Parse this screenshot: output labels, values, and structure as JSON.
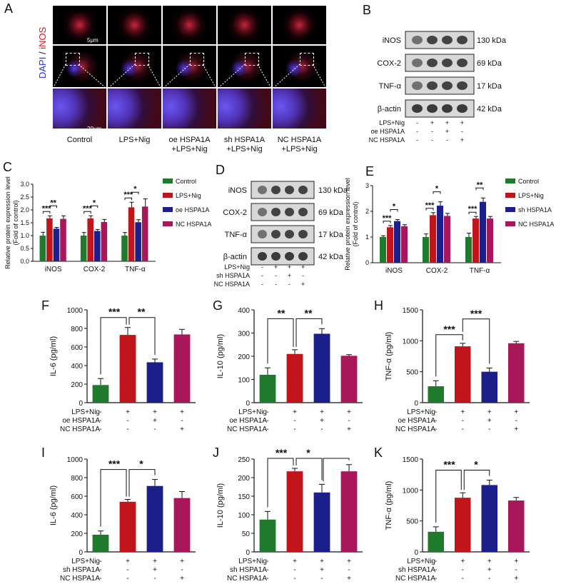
{
  "panel_letters": [
    "A",
    "B",
    "C",
    "D",
    "E",
    "F",
    "G",
    "H",
    "I",
    "J",
    "K"
  ],
  "micro": {
    "stain_dapi": "DAPI",
    "stain_sep": "/",
    "stain_inos": "iNOS",
    "scale_top": "5μm",
    "scale_bottom": "20μm",
    "columns": [
      "Control",
      "LPS+Nig",
      "oe HSPA1A\n+LPS+Nig",
      "sh HSPA1A\n+LPS+Nig",
      "NC HSPA1A\n+LPS+Nig"
    ]
  },
  "blot_b": {
    "proteins": [
      "iNOS",
      "COX-2",
      "TNF-α",
      "β-actin"
    ],
    "sizes": [
      "130 kDa",
      "69 kDa",
      "17 kDa",
      "42 kDa"
    ],
    "rows": [
      {
        "label": "LPS+Nig",
        "signs": [
          "-",
          "+",
          "+",
          "+"
        ]
      },
      {
        "label": "oe HSPA1A",
        "signs": [
          "-",
          "-",
          "+",
          "-"
        ]
      },
      {
        "label": "NC HSPA1A",
        "signs": [
          "-",
          "-",
          "-",
          "+"
        ]
      }
    ]
  },
  "blot_d": {
    "proteins": [
      "iNOS",
      "COX-2",
      "TNF-α",
      "β-actin"
    ],
    "sizes": [
      "130 kDa",
      "69 kDa",
      "17 kDa",
      "42 kDa"
    ],
    "rows": [
      {
        "label": "LPS+Nig",
        "signs": [
          "-",
          "+",
          "+",
          "+"
        ]
      },
      {
        "label": "sh HSPA1A",
        "signs": [
          "-",
          "-",
          "+",
          "-"
        ]
      },
      {
        "label": "NC HSPA1A",
        "signs": [
          "-",
          "-",
          "-",
          "+"
        ]
      }
    ]
  },
  "colors": {
    "control": "#1f7a2e",
    "lps": "#c0151b",
    "treat": "#1b1f8a",
    "nc": "#a8175a"
  },
  "chart_data": [
    {
      "id": "C",
      "type": "bar",
      "ylabel": "Relative protein expression level\n(Fold of control)",
      "ylim": [
        0,
        3.0
      ],
      "ticks": [
        "0.0",
        "0.5",
        "1.0",
        "1.5",
        "2.0",
        "2.5",
        "3.0"
      ],
      "categories": [
        "iNOS",
        "COX-2",
        "TNF-α"
      ],
      "series": [
        {
          "name": "Control",
          "values": [
            1.0,
            1.0,
            1.0
          ],
          "err": [
            0.13,
            0.12,
            0.12
          ]
        },
        {
          "name": "LPS+Nig",
          "values": [
            1.67,
            1.67,
            2.1
          ],
          "err": [
            0.1,
            0.1,
            0.2
          ]
        },
        {
          "name": "oe HSPA1A",
          "values": [
            1.27,
            1.18,
            1.52
          ],
          "err": [
            0.05,
            0.06,
            0.1
          ]
        },
        {
          "name": "NC HSPA1A",
          "values": [
            1.65,
            1.53,
            2.13
          ],
          "err": [
            0.12,
            0.1,
            0.3
          ]
        }
      ],
      "sig": [
        [
          "***",
          "**"
        ],
        [
          "***",
          "*"
        ],
        [
          "***",
          "*"
        ]
      ]
    },
    {
      "id": "E",
      "type": "bar",
      "ylabel": "Relative protein expression level\n(Fold of control)",
      "ylim": [
        0,
        3
      ],
      "ticks": [
        "0",
        "1",
        "2",
        "3"
      ],
      "categories": [
        "iNOS",
        "COX-2",
        "TNF-α"
      ],
      "series": [
        {
          "name": "Control",
          "values": [
            1.0,
            1.0,
            1.0
          ],
          "err": [
            0.05,
            0.12,
            0.15
          ]
        },
        {
          "name": "LPS+Nig",
          "values": [
            1.38,
            1.85,
            1.72
          ],
          "err": [
            0.07,
            0.1,
            0.08
          ]
        },
        {
          "name": "sh HSPA1A",
          "values": [
            1.62,
            2.22,
            2.37
          ],
          "err": [
            0.06,
            0.15,
            0.15
          ]
        },
        {
          "name": "NC HSPA1A",
          "values": [
            1.42,
            1.82,
            1.72
          ],
          "err": [
            0.06,
            0.1,
            0.08
          ]
        }
      ],
      "sig": [
        [
          "***",
          "*"
        ],
        [
          "***",
          "*"
        ],
        [
          "***",
          "**"
        ]
      ]
    },
    {
      "id": "F",
      "type": "bar",
      "ylabel": "IL-6 (pg/ml)",
      "ylim": [
        0,
        1000
      ],
      "ticks": [
        "0",
        "200",
        "400",
        "600",
        "800",
        "1000"
      ],
      "values": [
        190,
        730,
        435,
        735
      ],
      "err": [
        70,
        80,
        35,
        55
      ],
      "sig": [
        "***",
        "**"
      ],
      "bracket": "short",
      "rows": [
        {
          "label": "LPS+Nig",
          "signs": [
            "-",
            "+",
            "+",
            "+"
          ]
        },
        {
          "label": "oe HSPA1A",
          "signs": [
            "-",
            "-",
            "+",
            "-"
          ]
        },
        {
          "label": "NC HSPA1A",
          "signs": [
            "-",
            "-",
            "-",
            "+"
          ]
        }
      ]
    },
    {
      "id": "G",
      "type": "bar",
      "ylabel": "IL-10 (pg/ml)",
      "ylim": [
        0,
        400
      ],
      "ticks": [
        "0",
        "100",
        "200",
        "300",
        "400"
      ],
      "values": [
        120,
        210,
        297,
        202
      ],
      "err": [
        30,
        18,
        22,
        5
      ],
      "sig": [
        "**",
        "**"
      ],
      "bracket": "short",
      "rows": [
        {
          "label": "LPS+Nig",
          "signs": [
            "-",
            "+",
            "+",
            "+"
          ]
        },
        {
          "label": "oe HSPA1A",
          "signs": [
            "-",
            "-",
            "+",
            "-"
          ]
        },
        {
          "label": "NC HSPA1A",
          "signs": [
            "-",
            "-",
            "-",
            "+"
          ]
        }
      ]
    },
    {
      "id": "H",
      "type": "bar",
      "ylabel": "TNF-α (pg/ml)",
      "ylim": [
        0,
        1500
      ],
      "ticks": [
        "0",
        "500",
        "1000",
        "1500"
      ],
      "values": [
        265,
        910,
        500,
        960
      ],
      "err": [
        90,
        50,
        60,
        30
      ],
      "sig": [
        "***",
        "***"
      ],
      "bracket": "stacked",
      "rows": [
        {
          "label": "LPS+Nig",
          "signs": [
            "-",
            "+",
            "+",
            "+"
          ]
        },
        {
          "label": "oe HSPA1A",
          "signs": [
            "-",
            "-",
            "+",
            "-"
          ]
        },
        {
          "label": "NC HSPA1A",
          "signs": [
            "-",
            "-",
            "-",
            "+"
          ]
        }
      ]
    },
    {
      "id": "I",
      "type": "bar",
      "ylabel": "IL-6 (pg/ml)",
      "ylim": [
        0,
        1000
      ],
      "ticks": [
        "0",
        "200",
        "400",
        "600",
        "800",
        "1000"
      ],
      "values": [
        185,
        540,
        710,
        580
      ],
      "err": [
        40,
        25,
        70,
        70
      ],
      "sig": [
        "***",
        "*"
      ],
      "bracket": "short",
      "rows": [
        {
          "label": "LPS+Nig",
          "signs": [
            "-",
            "+",
            "+",
            "+"
          ]
        },
        {
          "label": "sh HSPA1A",
          "signs": [
            "-",
            "-",
            "+",
            "-"
          ]
        },
        {
          "label": "NC HSPA1A",
          "signs": [
            "-",
            "-",
            "-",
            "+"
          ]
        }
      ]
    },
    {
      "id": "J",
      "type": "bar",
      "ylabel": "IL-10 (pg/ml)",
      "ylim": [
        0,
        250
      ],
      "ticks": [
        "0",
        "50",
        "100",
        "150",
        "200",
        "250"
      ],
      "values": [
        87,
        217,
        160,
        217
      ],
      "err": [
        22,
        8,
        22,
        18
      ],
      "sig": [
        "***",
        "*"
      ],
      "bracket": "triple",
      "rows": [
        {
          "label": "LPS+Nig",
          "signs": [
            "-",
            "+",
            "+",
            "+"
          ]
        },
        {
          "label": "sh HSPA1A",
          "signs": [
            "-",
            "-",
            "+",
            "-"
          ]
        },
        {
          "label": "NC HSPA1A",
          "signs": [
            "-",
            "-",
            "-",
            "+"
          ]
        }
      ]
    },
    {
      "id": "K",
      "type": "bar",
      "ylabel": "TNF-α (pg/ml)",
      "ylim": [
        0,
        1500
      ],
      "ticks": [
        "0",
        "500",
        "1000",
        "1500"
      ],
      "values": [
        325,
        875,
        1080,
        830
      ],
      "err": [
        80,
        80,
        80,
        50
      ],
      "sig": [
        "***",
        "*"
      ],
      "bracket": "short",
      "rows": [
        {
          "label": "LPS+Nig",
          "signs": [
            "-",
            "+",
            "+",
            "+"
          ]
        },
        {
          "label": "sh HSPA1A",
          "signs": [
            "-",
            "-",
            "+",
            "-"
          ]
        },
        {
          "label": "NC HSPA1A",
          "signs": [
            "-",
            "-",
            "-",
            "+"
          ]
        }
      ]
    }
  ]
}
